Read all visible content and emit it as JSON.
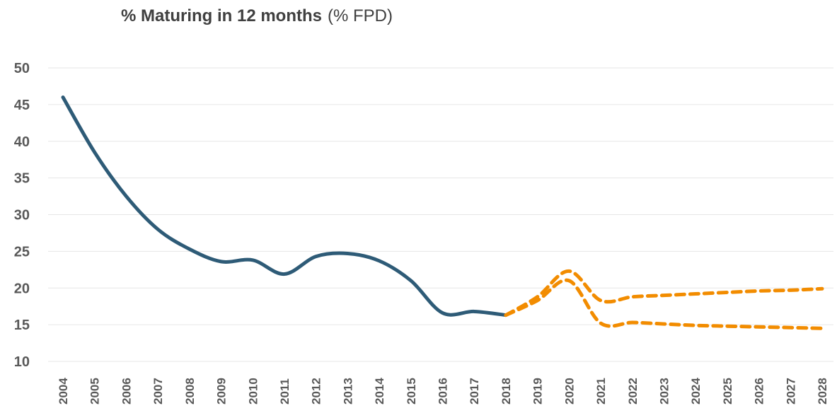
{
  "chart_data": {
    "type": "line",
    "title": "% Maturing in 12 months",
    "subtitle": "(% FPD)",
    "categories": [
      "2004",
      "2005",
      "2006",
      "2007",
      "2008",
      "2009",
      "2010",
      "2011",
      "2012",
      "2013",
      "2014",
      "2015",
      "2016",
      "2017",
      "2018",
      "2019",
      "2020",
      "2021",
      "2022",
      "2023",
      "2024",
      "2025",
      "2026",
      "2027",
      "2028"
    ],
    "series": [
      {
        "color": "#2e5b77",
        "dashed": false,
        "values": [
          46,
          38.5,
          32.5,
          28,
          25.3,
          23.6,
          23.8,
          21.9,
          24.3,
          24.7,
          23.7,
          21,
          16.6,
          16.8,
          16.3,
          null,
          null,
          null,
          null,
          null,
          null,
          null,
          null,
          null,
          null
        ]
      },
      {
        "color": "#f28c00",
        "dashed": true,
        "values": [
          null,
          null,
          null,
          null,
          null,
          null,
          null,
          null,
          null,
          null,
          null,
          null,
          null,
          null,
          16.3,
          18.8,
          22.3,
          18.3,
          18.8,
          19.0,
          19.2,
          19.4,
          19.6,
          19.7,
          19.9
        ]
      },
      {
        "color": "#f28c00",
        "dashed": true,
        "values": [
          null,
          null,
          null,
          null,
          null,
          null,
          null,
          null,
          null,
          null,
          null,
          null,
          null,
          null,
          16.3,
          18.3,
          21.0,
          15.2,
          15.3,
          15.1,
          14.9,
          14.8,
          14.7,
          14.6,
          14.5
        ]
      }
    ],
    "ylim": [
      10,
      50
    ],
    "yticks": [
      10,
      15,
      20,
      25,
      30,
      35,
      40,
      45,
      50
    ],
    "grid": true
  }
}
